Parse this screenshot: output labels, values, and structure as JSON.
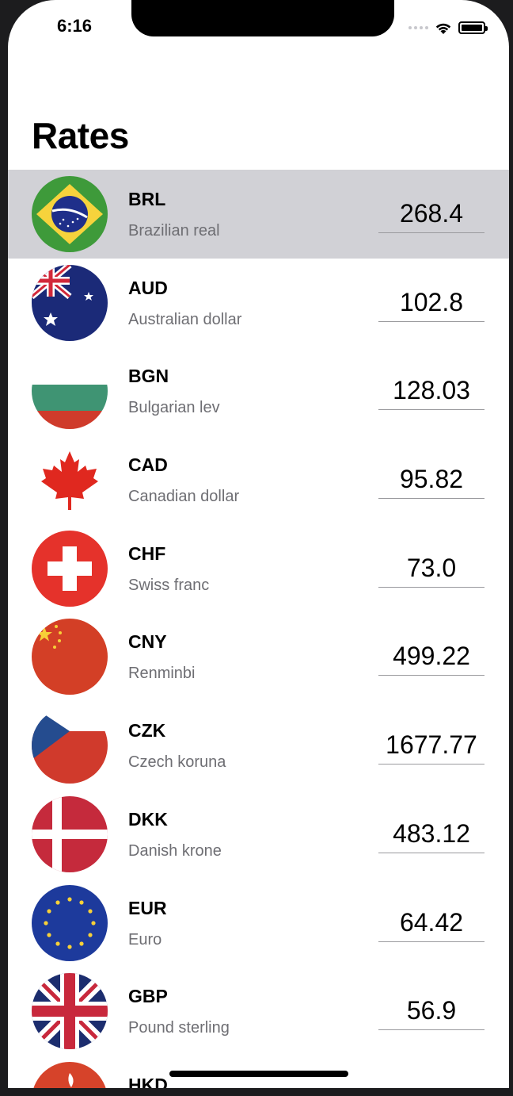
{
  "status_bar": {
    "time": "6:16"
  },
  "header": {
    "title": "Rates"
  },
  "currencies": [
    {
      "code": "BRL",
      "name": "Brazilian real",
      "amount": "268.4",
      "selected": true,
      "flag_icon": "brazil-flag-icon"
    },
    {
      "code": "AUD",
      "name": "Australian dollar",
      "amount": "102.8",
      "flag_icon": "australia-flag-icon"
    },
    {
      "code": "BGN",
      "name": "Bulgarian lev",
      "amount": "128.03",
      "flag_icon": "bulgaria-flag-icon"
    },
    {
      "code": "CAD",
      "name": "Canadian dollar",
      "amount": "95.82",
      "flag_icon": "canada-flag-icon"
    },
    {
      "code": "CHF",
      "name": "Swiss franc",
      "amount": "73.0",
      "flag_icon": "switzerland-flag-icon"
    },
    {
      "code": "CNY",
      "name": "Renminbi",
      "amount": "499.22",
      "flag_icon": "china-flag-icon"
    },
    {
      "code": "CZK",
      "name": "Czech koruna",
      "amount": "1677.77",
      "flag_icon": "czechia-flag-icon"
    },
    {
      "code": "DKK",
      "name": "Danish krone",
      "amount": "483.12",
      "flag_icon": "denmark-flag-icon"
    },
    {
      "code": "EUR",
      "name": "Euro",
      "amount": "64.42",
      "flag_icon": "eu-flag-icon"
    },
    {
      "code": "GBP",
      "name": "Pound sterling",
      "amount": "56.9",
      "flag_icon": "uk-flag-icon"
    },
    {
      "code": "HKD",
      "name": "",
      "amount": "",
      "flag_icon": "hong-kong-flag-icon"
    }
  ],
  "colors": {
    "selected_row": "#d1d1d6",
    "secondary_text": "#6e6e73",
    "underline": "#9a9a9e"
  }
}
